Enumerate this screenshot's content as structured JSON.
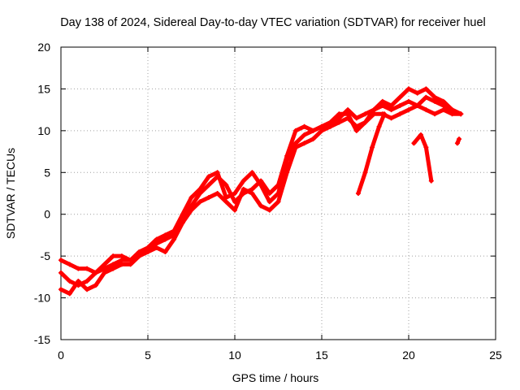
{
  "chart_data": {
    "type": "scatter",
    "title": "Day 138 of 2024, Sidereal Day-to-day VTEC variation (SDTVAR) for receiver huel",
    "xlabel": "GPS time / hours",
    "ylabel": "SDTVAR / TECUs",
    "xlim": [
      0,
      25
    ],
    "ylim": [
      -15,
      20
    ],
    "xticks": [
      0,
      5,
      10,
      15,
      20,
      25
    ],
    "yticks": [
      -15,
      -10,
      -5,
      0,
      5,
      10,
      15,
      20
    ],
    "xtick_labels": [
      "0",
      "5",
      "10",
      "15",
      "20",
      "25"
    ],
    "ytick_labels": [
      "-15",
      "-10",
      "-5",
      "0",
      "5",
      "10",
      "15",
      "20"
    ],
    "grid": true,
    "legend": "none",
    "marker": "plus",
    "series": [
      {
        "name": "track-a",
        "color": "#ff0000",
        "x": [
          0,
          0.5,
          1,
          1.5,
          2,
          2.5,
          3,
          3.5,
          4,
          4.5,
          5,
          5.5,
          6,
          6.5,
          7,
          7.5,
          8,
          8.5,
          9,
          9.5,
          10,
          10.5,
          11,
          11.5,
          12,
          12.5,
          13,
          13.5,
          14,
          14.5,
          15,
          15.5,
          16,
          16.5,
          17,
          17.5,
          18,
          18.5,
          19,
          19.5,
          20,
          20.5,
          21,
          21.5,
          22,
          22.5,
          23
        ],
        "y": [
          -7,
          -8,
          -8.5,
          -8,
          -7,
          -6.5,
          -6,
          -5.5,
          -5.5,
          -5,
          -4,
          -3.5,
          -3,
          -2.5,
          -1,
          1,
          2.5,
          3.5,
          4.5,
          3.5,
          1.5,
          2.5,
          3,
          4,
          2.5,
          3.5,
          7,
          10,
          10.5,
          10,
          10.5,
          11,
          11.5,
          12.5,
          11.5,
          12,
          12.5,
          13,
          12.5,
          13,
          13.5,
          13,
          14,
          13.5,
          13,
          12.5,
          12
        ]
      },
      {
        "name": "track-b",
        "color": "#ff0000",
        "x": [
          0,
          0.5,
          1,
          1.5,
          2,
          2.5,
          3,
          3.5,
          4,
          4.5,
          5,
          5.5,
          6,
          6.5,
          7,
          7.5,
          8,
          8.5,
          9,
          9.5,
          10,
          10.5,
          11,
          11.5,
          12,
          12.5,
          13,
          13.5,
          14,
          14.5,
          15,
          15.5,
          16,
          16.5,
          17,
          17.5,
          18,
          18.5,
          19,
          19.5,
          20,
          20.5,
          21,
          21.5,
          22,
          22.5,
          23
        ],
        "y": [
          -9,
          -9.5,
          -8,
          -9,
          -8.5,
          -7,
          -6.5,
          -6,
          -6,
          -5,
          -4.5,
          -4,
          -4.5,
          -3,
          -1,
          0.5,
          1.5,
          2,
          2.5,
          1.5,
          0.5,
          3,
          2.5,
          1,
          0.5,
          1.5,
          5,
          8,
          8.5,
          9,
          10,
          10.5,
          11,
          11.5,
          10.5,
          11,
          12,
          12,
          11.5,
          12,
          12.5,
          13,
          12.5,
          12,
          12.5,
          12,
          12
        ]
      },
      {
        "name": "track-c",
        "color": "#ff0000",
        "x": [
          0,
          0.5,
          1,
          1.5,
          2,
          2.5,
          3,
          3.5,
          4,
          4.5,
          5,
          5.5,
          6,
          6.5,
          7,
          7.5,
          8,
          8.5,
          9,
          9.5,
          10,
          10.5,
          11,
          11.5,
          12,
          12.5,
          13,
          13.5,
          14,
          14.5,
          15,
          15.5,
          16,
          16.5,
          17,
          17.5,
          18,
          18.5,
          19,
          19.5,
          20,
          20.5,
          21,
          21.5,
          22,
          22.5,
          23
        ],
        "y": [
          -5.5,
          -6,
          -6.5,
          -6.5,
          -7,
          -6,
          -5,
          -5,
          -5.5,
          -4.5,
          -4,
          -3,
          -2.5,
          -2,
          0,
          2,
          3,
          4.5,
          5,
          2,
          2.5,
          4,
          5,
          3.5,
          1.5,
          2.5,
          6.5,
          8.5,
          9.5,
          10,
          10.5,
          11,
          12,
          12,
          10,
          11,
          12.5,
          13.5,
          13,
          14,
          15,
          14.5,
          15,
          14,
          13.5,
          12.5,
          12
        ]
      },
      {
        "name": "segment-d",
        "color": "#ff0000",
        "x": [
          17.1,
          17.5,
          17.9,
          18.3,
          18.6
        ],
        "y": [
          2.5,
          5,
          8,
          10.5,
          12
        ]
      },
      {
        "name": "segment-e",
        "color": "#ff0000",
        "x": [
          20.3,
          20.7,
          21.0,
          21.3
        ],
        "y": [
          8.5,
          9.5,
          8,
          4
        ]
      },
      {
        "name": "segment-f",
        "color": "#ff0000",
        "x": [
          22.8,
          22.9
        ],
        "y": [
          8.5,
          9
        ]
      }
    ]
  }
}
